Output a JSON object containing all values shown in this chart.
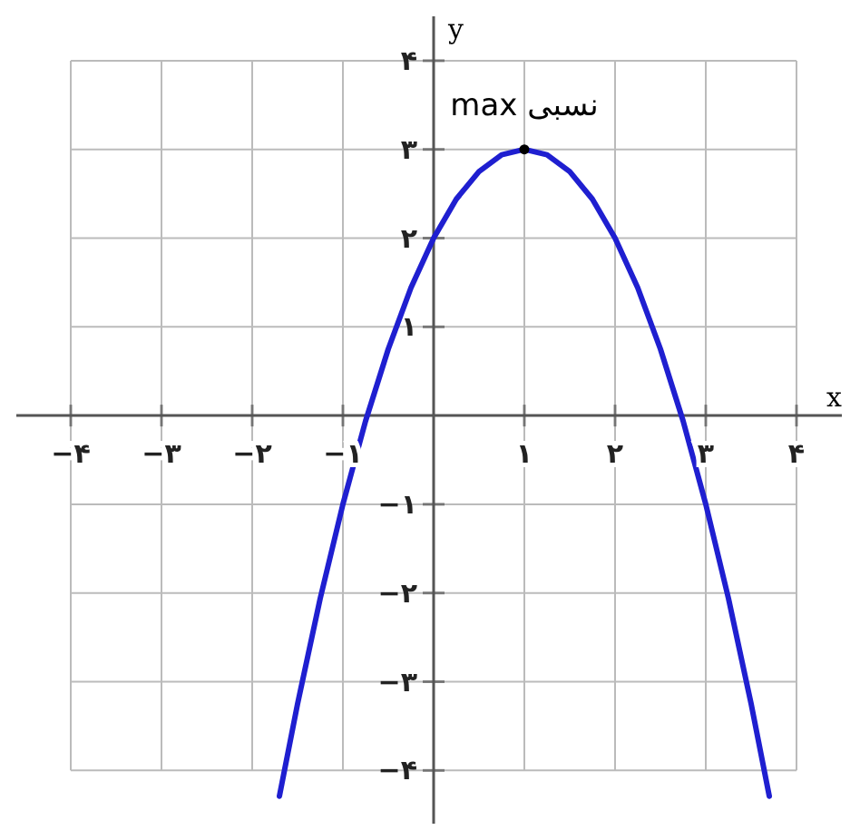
{
  "chart_data": {
    "type": "line",
    "xlabel": "x",
    "ylabel": "y",
    "x": [
      -1.7,
      -1.5,
      -1.25,
      -1,
      -0.75,
      -0.5,
      -0.25,
      0,
      0.25,
      0.5,
      0.75,
      1,
      1.25,
      1.5,
      1.75,
      2,
      2.25,
      2.5,
      2.75,
      3,
      3.25,
      3.5,
      3.7
    ],
    "series": [
      {
        "color": "#1f1fd0",
        "values": [
          -4.29,
          -3.25,
          -2.06,
          -1,
          -0.06,
          0.75,
          1.44,
          2,
          2.44,
          2.75,
          2.94,
          3,
          2.94,
          2.75,
          2.44,
          2,
          1.44,
          0.75,
          -0.06,
          -1,
          -2.06,
          -3.25,
          -4.29
        ]
      }
    ],
    "xlim": [
      -4.6,
      4.5
    ],
    "ylim": [
      -4.6,
      4.5
    ],
    "xticks": [
      {
        "value": -4,
        "label": "−۴"
      },
      {
        "value": -3,
        "label": "−۳"
      },
      {
        "value": -2,
        "label": "−۲"
      },
      {
        "value": -1,
        "label": "−۱"
      },
      {
        "value": 1,
        "label": "۱"
      },
      {
        "value": 2,
        "label": "۲"
      },
      {
        "value": 3,
        "label": "۳"
      },
      {
        "value": 4,
        "label": "۴"
      }
    ],
    "yticks": [
      {
        "value": -4,
        "label": "−۴"
      },
      {
        "value": -3,
        "label": "−۳"
      },
      {
        "value": -2,
        "label": "−۲"
      },
      {
        "value": -1,
        "label": "−۱"
      },
      {
        "value": 1,
        "label": "۱"
      },
      {
        "value": 2,
        "label": "۲"
      },
      {
        "value": 3,
        "label": "۳"
      },
      {
        "value": 4,
        "label": "۴"
      }
    ],
    "annotations": [
      {
        "text": "max نسبی",
        "x": 1,
        "y": 3
      }
    ],
    "grid": true,
    "line_style": "solid"
  }
}
